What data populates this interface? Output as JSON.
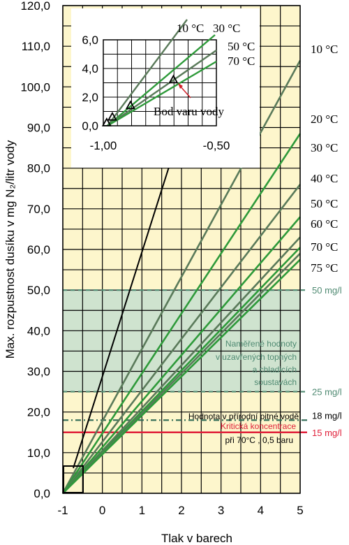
{
  "chart_data": {
    "type": "line",
    "xlabel": "Tlak v barech",
    "ylabel": "Max. rozpustnost dusíku v mg N₂/litr vody",
    "xlim": [
      -1,
      5
    ],
    "ylim": [
      0,
      120
    ],
    "x_ticks": [
      "-1",
      "0",
      "1",
      "2",
      "3",
      "4",
      "5"
    ],
    "y_ticks": [
      "0,0",
      "10,0",
      "20,0",
      "30,0",
      "40,0",
      "50,0",
      "60,0",
      "70,0",
      "80,0",
      "90,0",
      "100,0",
      "110,0",
      "120,0"
    ],
    "grid": true,
    "series": [
      {
        "name": "10 °C",
        "color": "#5a7a5a",
        "x": [
          -1,
          5
        ],
        "y": [
          0,
          106.5
        ]
      },
      {
        "name": "20 °C",
        "color": "#2e9a3a",
        "x": [
          -1,
          5
        ],
        "y": [
          0,
          88.5
        ]
      },
      {
        "name": "30 °C",
        "color": "#5a7a5a",
        "x": [
          -1,
          5
        ],
        "y": [
          0,
          76
        ]
      },
      {
        "name": "40 °C",
        "color": "#2e9a3a",
        "x": [
          -1,
          5
        ],
        "y": [
          0,
          68
        ]
      },
      {
        "name": "50 °C",
        "color": "#5a7a5a",
        "x": [
          -1,
          5
        ],
        "y": [
          0,
          63
        ]
      },
      {
        "name": "60 °C",
        "color": "#2e9a3a",
        "x": [
          -1,
          5
        ],
        "y": [
          0,
          60.5
        ]
      },
      {
        "name": "70 °C",
        "color": "#5a7a5a",
        "x": [
          -1,
          5
        ],
        "y": [
          0,
          59
        ]
      },
      {
        "name": "75 °C",
        "color": "#2e9a3a",
        "x": [
          -1,
          5
        ],
        "y": [
          0,
          57.5
        ]
      }
    ],
    "reference_lines": [
      {
        "y": 50,
        "label": "50 mg/l",
        "color": "#4f8a72",
        "style": "dashed"
      },
      {
        "y": 25,
        "label": "25 mg/l",
        "color": "#4f8a72",
        "style": "dashed"
      },
      {
        "y": 18,
        "label": "18 mg/l",
        "color": "#2f6a55",
        "style": "dashdot"
      },
      {
        "y": 15,
        "label": "15 mg/l",
        "color": "#e0203a",
        "style": "solid"
      }
    ],
    "band": {
      "y0": 25,
      "y1": 50,
      "color": "#cfe3cf",
      "label_lines": [
        "Naměřené hodnoty",
        "v uzavřených topných",
        "a chladicích",
        "soustavách"
      ],
      "label_color": "#4f8a72"
    },
    "annotations": {
      "natural_water": "Hodnota v přírodní pitné vodě",
      "critical": "Kritická koncentrace",
      "critical_sub": "při 70°C , 0,5 baru"
    },
    "inset": {
      "xlim": [
        -1.0,
        -0.5
      ],
      "ylim": [
        0,
        6
      ],
      "x_ticks": [
        "-1,00",
        "-0,50"
      ],
      "y_ticks": [
        "0,0",
        "2,0",
        "4,0",
        "6,0"
      ],
      "labels": [
        "10 °C",
        "30 °C",
        "50 °C",
        "70 °C"
      ],
      "annotation": "Bod varu vody",
      "boiling_points": [
        {
          "x": -0.985,
          "y": 0.2
        },
        {
          "x": -0.96,
          "y": 0.6
        },
        {
          "x": -0.88,
          "y": 1.4
        },
        {
          "x": -0.69,
          "y": 3.2
        }
      ]
    }
  }
}
